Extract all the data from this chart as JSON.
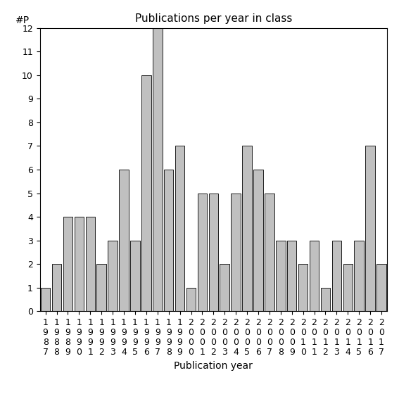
{
  "title": "Publications per year in class",
  "xlabel": "Publication year",
  "ylabel": "#P",
  "years": [
    "1987",
    "1988",
    "1989",
    "1990",
    "1991",
    "1992",
    "1993",
    "1994",
    "1995",
    "1996",
    "1997",
    "1998",
    "1999",
    "2000",
    "2001",
    "2002",
    "2003",
    "2004",
    "2005",
    "2006",
    "2007",
    "2008",
    "2009",
    "2010",
    "2011",
    "2012",
    "2013",
    "2014",
    "2015",
    "2016",
    "2017"
  ],
  "values": [
    1,
    2,
    4,
    4,
    4,
    2,
    3,
    6,
    3,
    10,
    12,
    6,
    7,
    1,
    5,
    5,
    2,
    5,
    7,
    6,
    5,
    3,
    3,
    2,
    3,
    1,
    3,
    2,
    3,
    7,
    2
  ],
  "bar_color": "#c0c0c0",
  "bar_edge_color": "#000000",
  "ylim": [
    0,
    12
  ],
  "yticks": [
    0,
    1,
    2,
    3,
    4,
    5,
    6,
    7,
    8,
    9,
    10,
    11,
    12
  ],
  "background_color": "#ffffff",
  "title_fontsize": 11,
  "xlabel_fontsize": 10,
  "tick_fontsize": 9,
  "ylabel_fontsize": 10
}
